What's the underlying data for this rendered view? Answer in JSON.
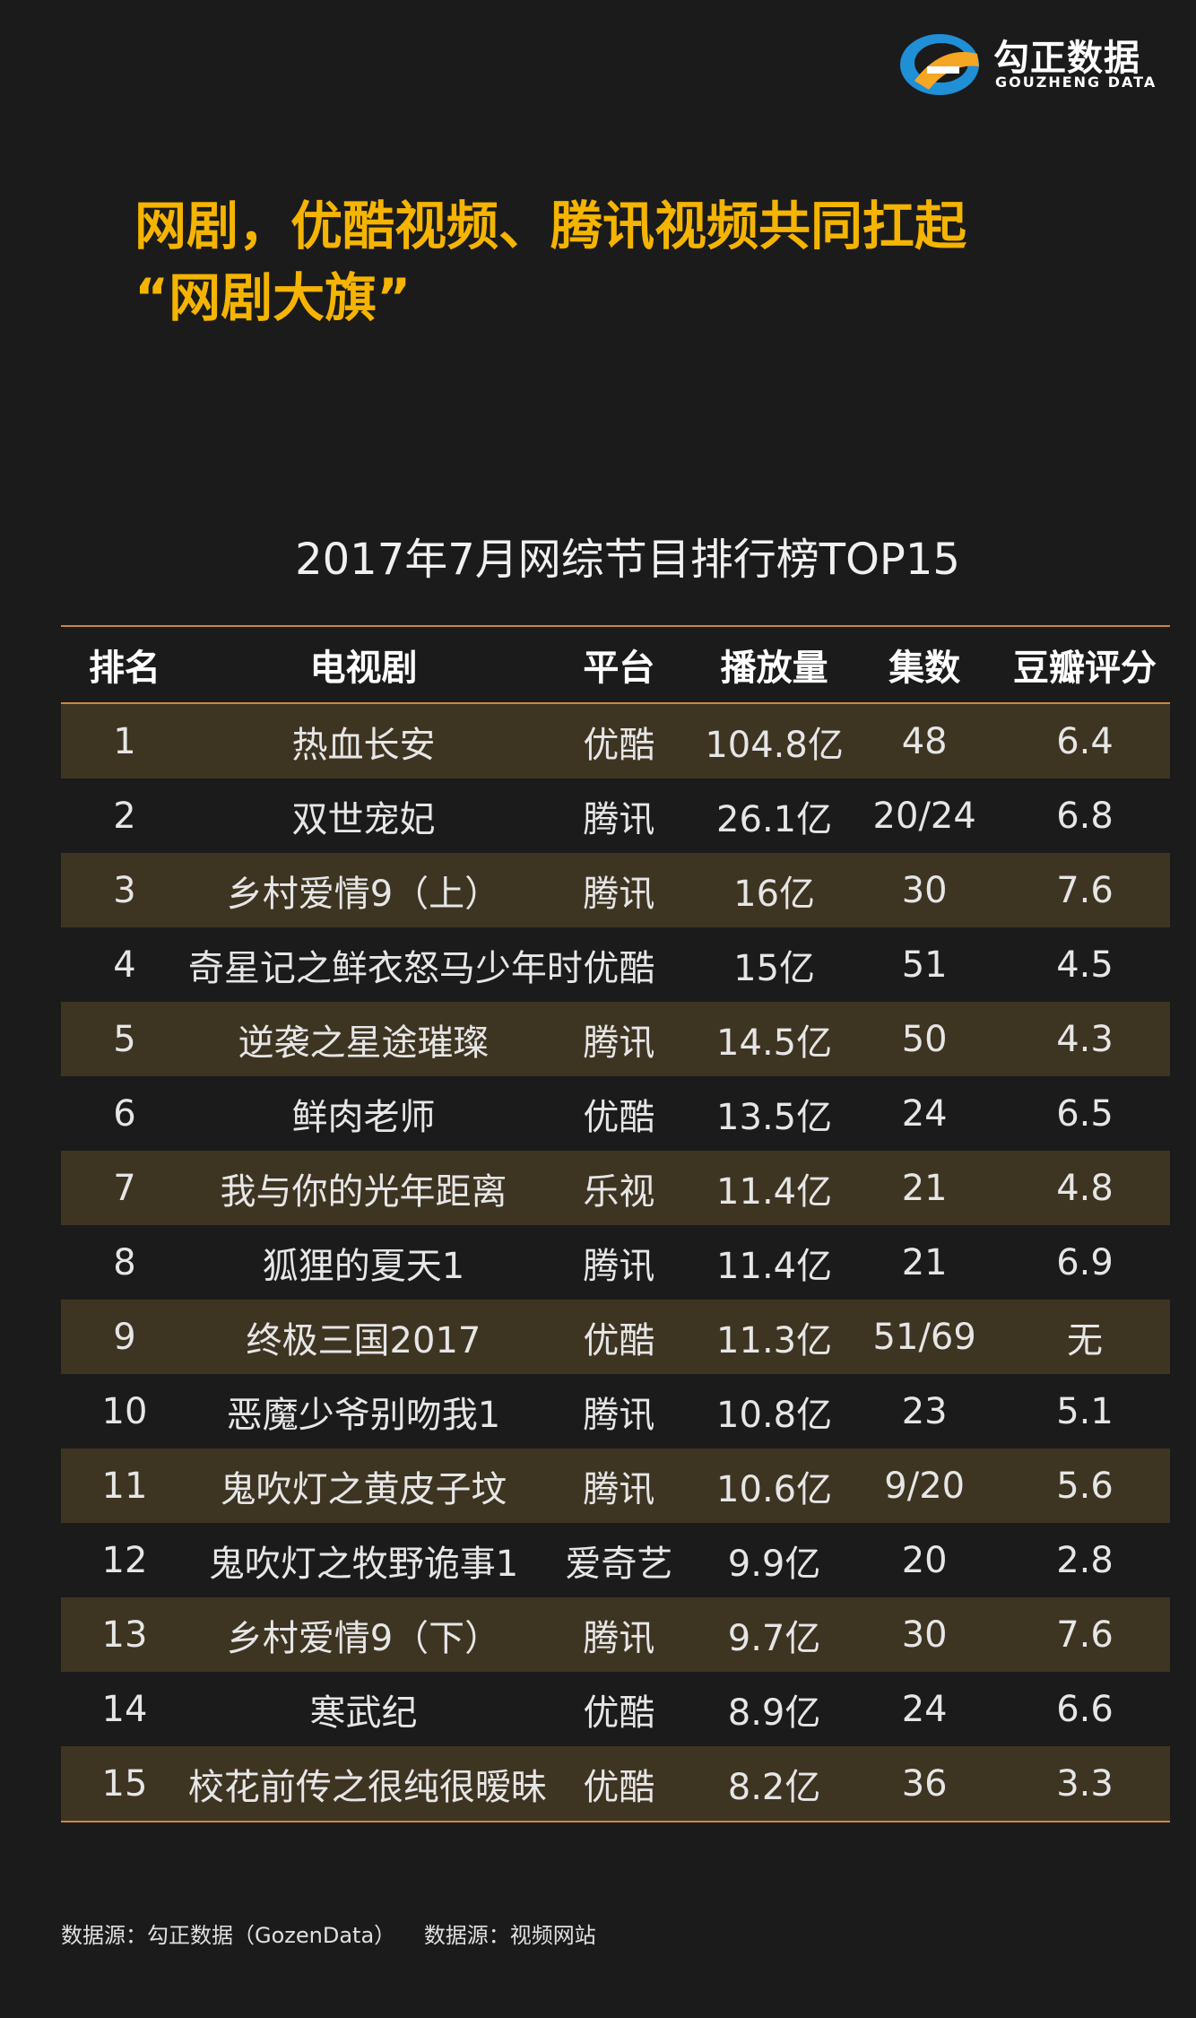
{
  "brand": {
    "name_cn": "勾正数据",
    "name_en": "GOUZHENG DATA",
    "colors": {
      "blue": "#1f8fd6",
      "orange": "#f5a623"
    }
  },
  "headline": {
    "line1": "网剧，优酷视频、腾讯视频共同扛起",
    "line2": "“网剧大旗”",
    "color": "#f5b400"
  },
  "table": {
    "title": "2017年7月网综节目排行榜TOP15",
    "headers": [
      "排名",
      "电视剧",
      "平台",
      "播放量",
      "集数",
      "豆瓣评分"
    ],
    "rows": [
      [
        "1",
        "热血长安",
        "优酷",
        "104.8亿",
        "48",
        "6.4"
      ],
      [
        "2",
        "双世宠妃",
        "腾讯",
        "26.1亿",
        "20/24",
        "6.8"
      ],
      [
        "3",
        "乡村爱情9（上）",
        "腾讯",
        "16亿",
        "30",
        "7.6"
      ],
      [
        "4",
        "奇星记之鲜衣怒马少年时",
        "优酷",
        "15亿",
        "51",
        "4.5"
      ],
      [
        "5",
        "逆袭之星途璀璨",
        "腾讯",
        "14.5亿",
        "50",
        "4.3"
      ],
      [
        "6",
        "鲜肉老师",
        "优酷",
        "13.5亿",
        "24",
        "6.5"
      ],
      [
        "7",
        "我与你的光年距离",
        "乐视",
        "11.4亿",
        "21",
        "4.8"
      ],
      [
        "8",
        "狐狸的夏天1",
        "腾讯",
        "11.4亿",
        "21",
        "6.9"
      ],
      [
        "9",
        "终极三国2017",
        "优酷",
        "11.3亿",
        "51/69",
        "无"
      ],
      [
        "10",
        "恶魔少爷别吻我1",
        "腾讯",
        "10.8亿",
        "23",
        "5.1"
      ],
      [
        "11",
        "鬼吹灯之黄皮子坟",
        "腾讯",
        "10.6亿",
        "9/20",
        "5.6"
      ],
      [
        "12",
        "鬼吹灯之牧野诡事1",
        "爱奇艺",
        "9.9亿",
        "20",
        "2.8"
      ],
      [
        "13",
        "乡村爱情9（下）",
        "腾讯",
        "9.7亿",
        "30",
        "7.6"
      ],
      [
        "14",
        "寒武纪",
        "优酷",
        "8.9亿",
        "24",
        "6.6"
      ],
      [
        "15",
        "校花前传之很纯很暧昧",
        "优酷",
        "8.2亿",
        "36",
        "3.3"
      ]
    ]
  },
  "footer": {
    "source1": "数据源：勾正数据（GozenData）",
    "source2": "数据源：视频网站"
  }
}
